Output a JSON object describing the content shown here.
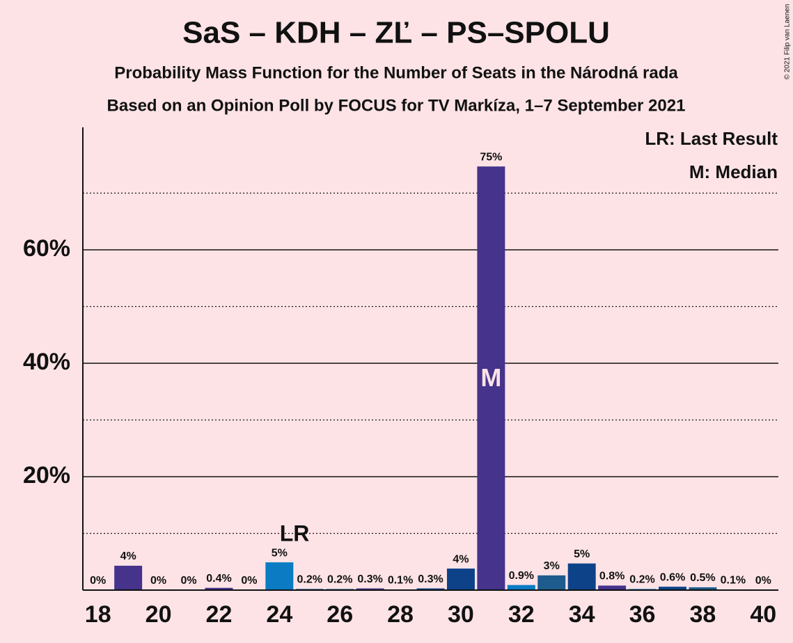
{
  "chart_data": {
    "type": "bar",
    "title": "SaS – KDH – ZĽ – PS–SPOLU",
    "subtitle": "Probability Mass Function for the Number of Seats in the Národná rada",
    "subtitle2": "Based on an Opinion Poll by FOCUS for TV Markíza, 1–7 September 2021",
    "copyright": "© 2021 Filip van Laenen",
    "legend": [
      "LR: Last Result",
      "M: Median"
    ],
    "x": [
      18,
      19,
      20,
      21,
      22,
      23,
      24,
      25,
      26,
      27,
      28,
      29,
      30,
      31,
      32,
      33,
      34,
      35,
      36,
      37,
      38,
      39,
      40
    ],
    "values": [
      0,
      4.3,
      0,
      0,
      0.4,
      0,
      4.9,
      0.2,
      0.2,
      0.3,
      0.1,
      0.3,
      3.8,
      74.7,
      0.9,
      2.6,
      4.7,
      0.8,
      0.2,
      0.6,
      0.5,
      0.1,
      0
    ],
    "value_labels": [
      "0%",
      "4%",
      "0%",
      "0%",
      "0.4%",
      "0%",
      "5%",
      "0.2%",
      "0.2%",
      "0.3%",
      "0.1%",
      "0.3%",
      "4%",
      "75%",
      "0.9%",
      "3%",
      "5%",
      "0.8%",
      "0.2%",
      "0.6%",
      "0.5%",
      "0.1%",
      "0%"
    ],
    "colors": [
      "#0b7bc4",
      "#45338c",
      "#0d4289",
      "#1e5c8e",
      "#45338c",
      "#0b7bc4",
      "#0b7bc4",
      "#0d4289",
      "#1e5c8e",
      "#45338c",
      "#0b7bc4",
      "#0d4289",
      "#0d4289",
      "#45338c",
      "#0b7bc4",
      "#1e5c8e",
      "#0d4289",
      "#45338c",
      "#0b7bc4",
      "#0d4289",
      "#1e5c8e",
      "#45338c",
      "#0b7bc4"
    ],
    "annotations": [
      {
        "x": 25,
        "text": "LR"
      },
      {
        "x": 31,
        "text": "M"
      }
    ],
    "xlim": [
      17.5,
      40.5
    ],
    "xticks": [
      18,
      20,
      22,
      24,
      26,
      28,
      30,
      32,
      34,
      36,
      38,
      40
    ],
    "ylim": [
      0,
      81.6
    ],
    "yticks": [
      {
        "value": 20,
        "label": "20%"
      },
      {
        "value": 40,
        "label": "40%"
      },
      {
        "value": 60,
        "label": "60%"
      }
    ],
    "minor_gridlines": [
      10,
      30,
      50,
      70
    ],
    "grid": true
  }
}
